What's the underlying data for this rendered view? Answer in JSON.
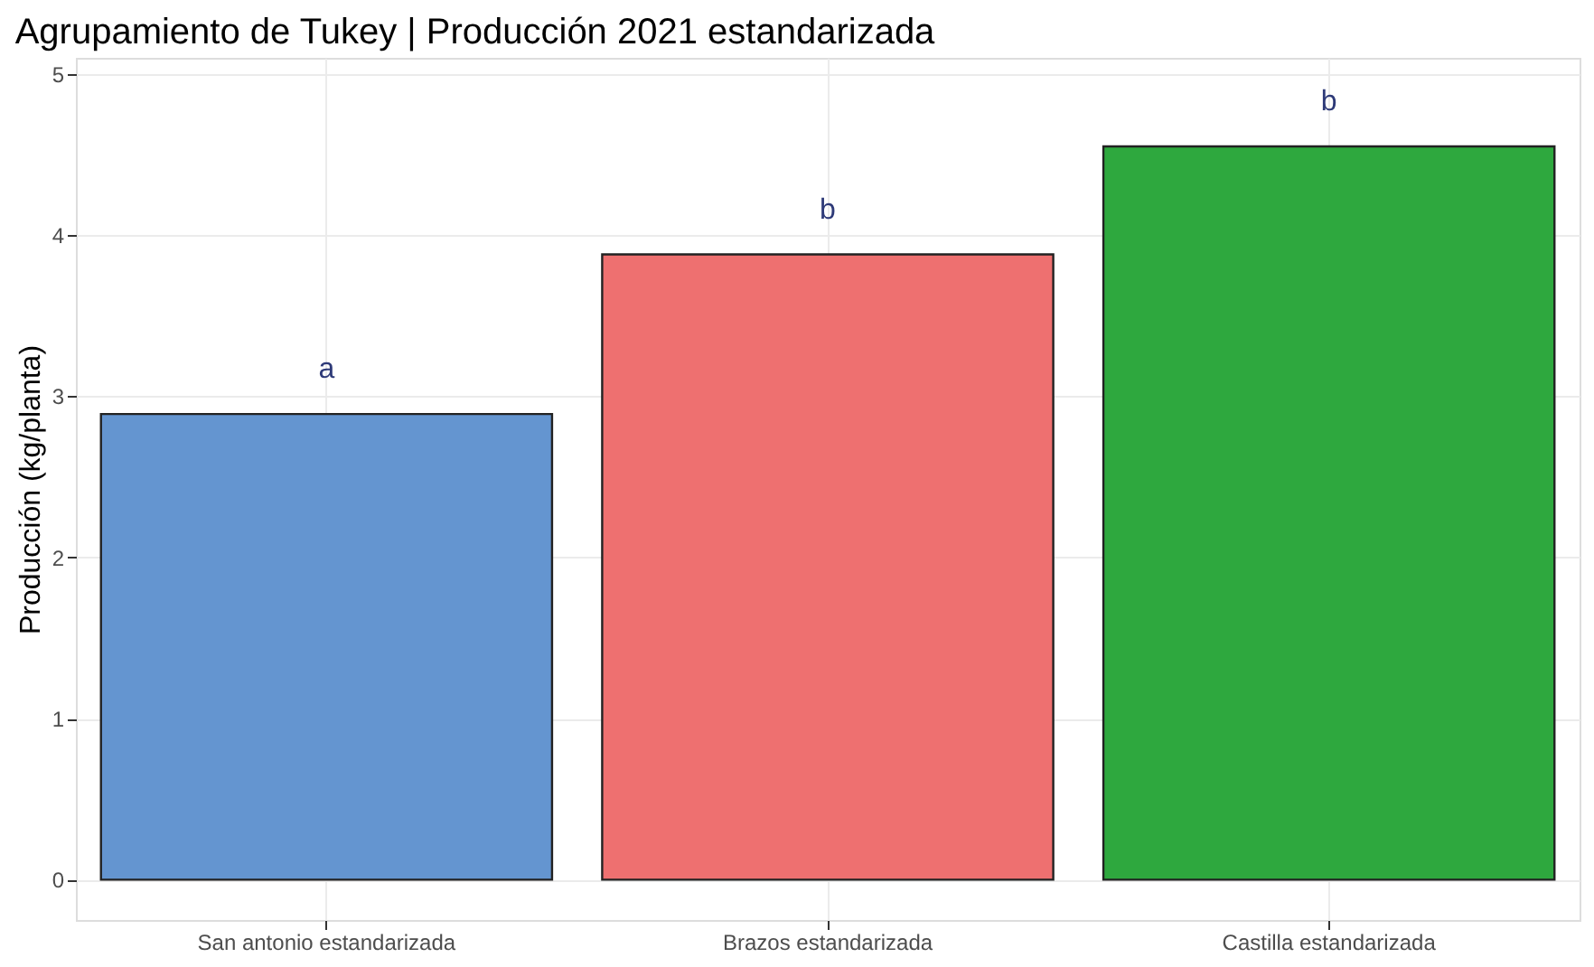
{
  "chart_data": {
    "type": "bar",
    "title": "Agrupamiento de Tukey | Producción 2021 estandarizada",
    "ylabel": "Producción (kg/planta)",
    "categories": [
      "San antonio estandarizada",
      "Brazos estandarizada",
      "Castilla estandarizada"
    ],
    "values": [
      2.89,
      3.88,
      4.55
    ],
    "colors": [
      "#6495d0",
      "#ee7070",
      "#2ea83e"
    ],
    "ylim": [
      -0.25,
      5.1
    ],
    "yticks": [
      0,
      1,
      2,
      3,
      4,
      5
    ],
    "grid": true,
    "annotations": [
      "a",
      "b",
      "b"
    ]
  }
}
